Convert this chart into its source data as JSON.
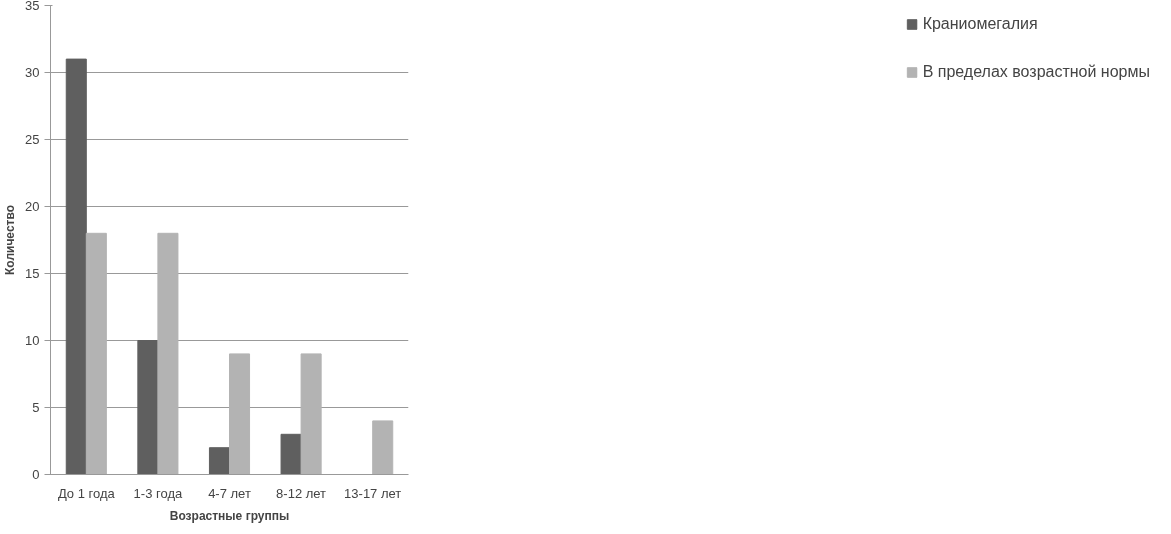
{
  "chart_data": {
    "type": "bar",
    "xlabel": "Возрастные группы",
    "ylabel": "Количество",
    "categories": [
      "До 1 года",
      "1-3 года",
      "4-7 лет",
      "8-12 лет",
      "13-17 лет"
    ],
    "series": [
      {
        "name": "Краниомегалия",
        "color": "#5f5f5f",
        "values": [
          31,
          10,
          2,
          3,
          0
        ]
      },
      {
        "name": "В пределах возрастной нормы",
        "color": "#b3b3b3",
        "values": [
          18,
          18,
          9,
          9,
          4
        ]
      }
    ],
    "ylim": [
      0,
      35
    ],
    "yticks": [
      0,
      5,
      10,
      15,
      20,
      25,
      30,
      35
    ],
    "grid": "y",
    "legend": "right"
  }
}
